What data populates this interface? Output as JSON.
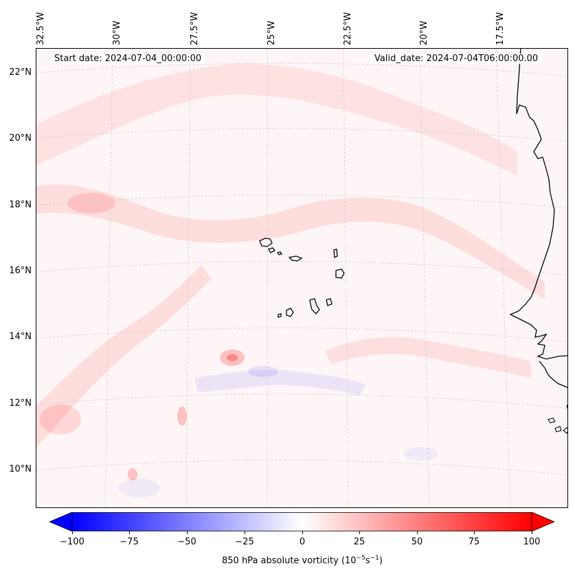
{
  "header": {
    "start_date": "Start date: 2024-07-04_00:00:00",
    "valid_date": "Valid_date: 2024-07-04T06:00:00.00"
  },
  "longitude_labels": [
    "32.5°W",
    "30°W",
    "27.5°W",
    "25°W",
    "22.5°W",
    "20°W",
    "17.5°W"
  ],
  "latitude_labels": [
    "22°N",
    "20°N",
    "18°N",
    "16°N",
    "14°N",
    "12°N",
    "10°N"
  ],
  "colorbar": {
    "label_prefix": "850 hPa absolute vorticity (10",
    "label_exp1": "−5",
    "label_mid": "s",
    "label_exp2": "−1",
    "label_suffix": ")",
    "ticks": [
      "−100",
      "−75",
      "−50",
      "−25",
      "0",
      "25",
      "50",
      "75",
      "100"
    ],
    "min": -100,
    "max": 100,
    "colormap": "bwr",
    "extend": "both"
  },
  "colors": {
    "negative": "#0000ff",
    "zero": "#ffffff",
    "positive": "#ff0000",
    "coastline": "#000000",
    "gridline": "#cccccc"
  }
}
